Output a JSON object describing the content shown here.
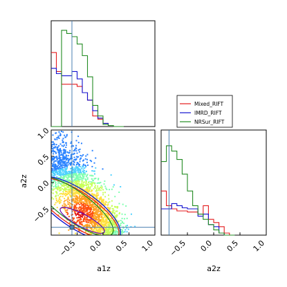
{
  "chart_data": {
    "type": "corner",
    "series": [
      {
        "name": "Mixed_RIFT",
        "color": "#e41a1c"
      },
      {
        "name": "IMRD_RIFT",
        "color": "#1010d0"
      },
      {
        "name": "NRSur_RIFT",
        "color": "#228b22"
      }
    ],
    "truth": {
      "a1z": -0.6,
      "a2z": -0.85,
      "color": "#4a7fb0"
    },
    "hist_bins": [
      -1.0,
      -0.9,
      -0.8,
      -0.7,
      -0.6,
      -0.5,
      -0.4,
      -0.3,
      -0.2,
      -0.1,
      0.0,
      0.1,
      0.2,
      0.3,
      0.4
    ],
    "a1z_hist": {
      "xlim": [
        -1,
        1
      ],
      "Mixed_RIFT": [
        0.7,
        0.52,
        0.4,
        0.4,
        0.4,
        0.38,
        0.32,
        0.25,
        0.1,
        0.07,
        0.03,
        0.01,
        0.0,
        0.0
      ],
      "IMRD_RIFT": [
        0.55,
        0.5,
        0.48,
        0.48,
        0.52,
        0.45,
        0.32,
        0.25,
        0.15,
        0.08,
        0.03,
        0.01,
        0.0,
        0.0
      ],
      "NRSur_RIFT": [
        0.0,
        0.0,
        0.91,
        0.88,
        0.85,
        0.78,
        0.67,
        0.47,
        0.2,
        0.1,
        0.02,
        0.01,
        0.0,
        0.0
      ]
    },
    "a2z_hist": {
      "xlim": [
        -1,
        1
      ],
      "Mixed_RIFT": [
        0.42,
        0.28,
        0.25,
        0.23,
        0.23,
        0.22,
        0.22,
        0.2,
        0.28,
        0.15,
        0.12,
        0.08,
        0.02,
        0.0
      ],
      "IMRD_RIFT": [
        0.25,
        0.25,
        0.3,
        0.28,
        0.26,
        0.25,
        0.25,
        0.18,
        0.2,
        0.1,
        0.08,
        0.02,
        0.0,
        0.0
      ],
      "NRSur_RIFT": [
        0.7,
        0.85,
        0.8,
        0.72,
        0.58,
        0.42,
        0.28,
        0.2,
        0.15,
        0.1,
        0.05,
        0.02,
        0.0,
        0.0
      ]
    },
    "scatter_2d": {
      "xlim": [
        -1,
        1
      ],
      "ylim": [
        -1,
        1
      ],
      "xlabel": "a1z",
      "ylabel": "a2z",
      "xticks": [
        "−0.5",
        "0.0",
        "0.5",
        "1.0"
      ],
      "yticks": [
        "1.0",
        "0.5",
        "0.0",
        "−0.5"
      ]
    },
    "a2z_xticks": [
      "−0.5",
      "0.0",
      "0.5",
      "1.0"
    ],
    "a2z_xlabel": "a2z",
    "legend_position": "middle-right"
  }
}
